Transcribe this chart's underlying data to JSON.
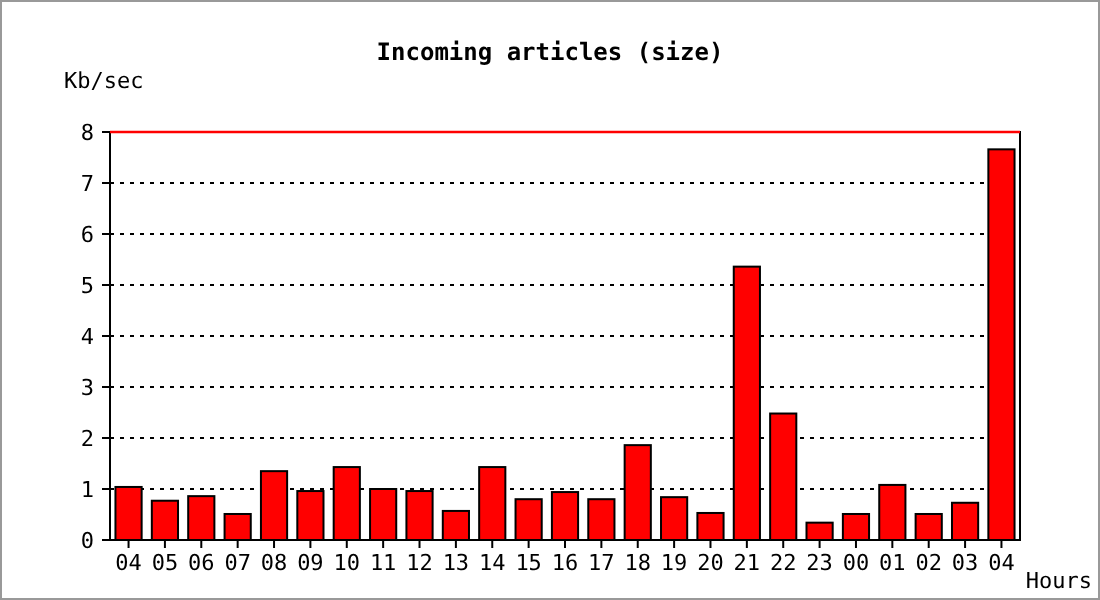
{
  "chart_data": {
    "type": "bar",
    "title": "Incoming articles (size)",
    "xlabel": "Hours",
    "ylabel": "Kb/sec",
    "categories": [
      "04",
      "05",
      "06",
      "07",
      "08",
      "09",
      "10",
      "11",
      "12",
      "13",
      "14",
      "15",
      "16",
      "17",
      "18",
      "19",
      "20",
      "21",
      "22",
      "23",
      "00",
      "01",
      "02",
      "03",
      "04"
    ],
    "values": [
      1.04,
      0.77,
      0.86,
      0.51,
      1.35,
      0.96,
      1.43,
      1.0,
      0.96,
      0.57,
      1.43,
      0.8,
      0.94,
      0.8,
      1.86,
      0.84,
      0.53,
      5.36,
      2.48,
      0.34,
      0.51,
      1.08,
      0.51,
      0.73,
      7.66
    ],
    "color": "#ff0000",
    "ylim": [
      0,
      8
    ],
    "yticks": [
      0,
      1,
      2,
      3,
      4,
      5,
      6,
      7,
      8
    ],
    "grid": "y",
    "ref_lines": [
      {
        "axis": "y",
        "value": 8,
        "color": "#ff0000"
      }
    ]
  }
}
